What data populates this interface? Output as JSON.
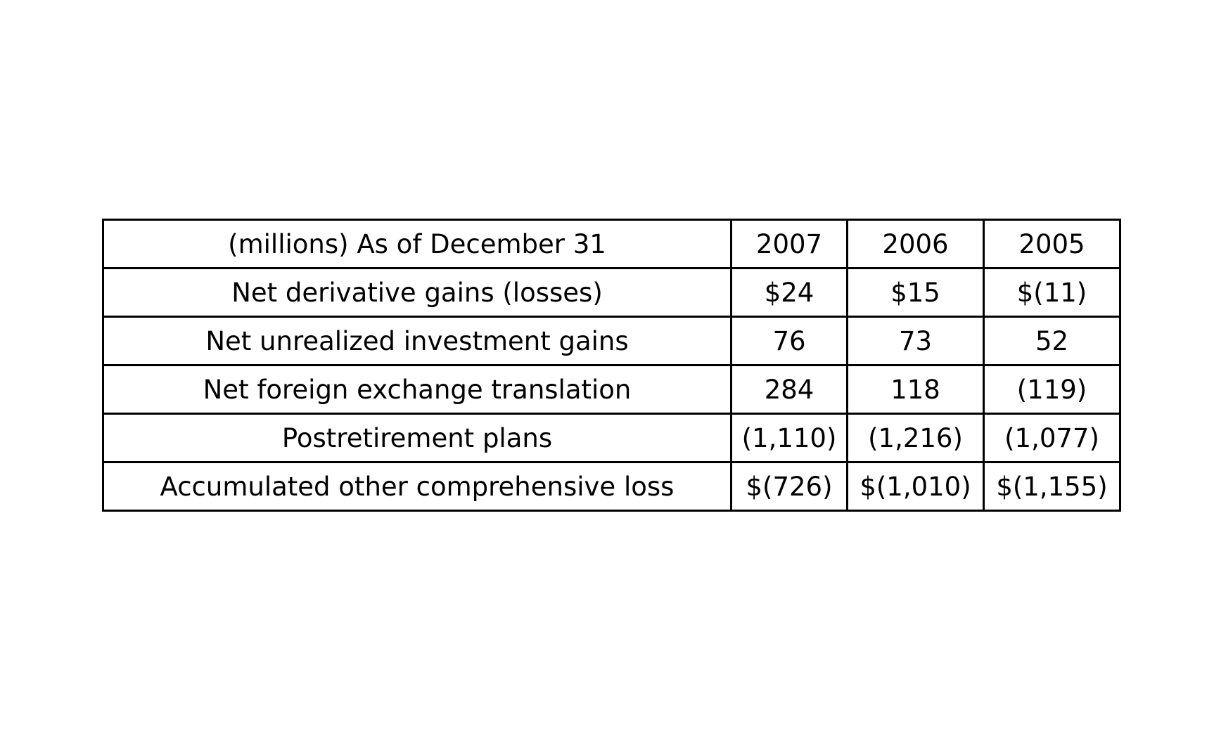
{
  "table": {
    "header": {
      "label": "(millions) As of December 31",
      "years": [
        "2007",
        "2006",
        "2005"
      ]
    },
    "rows": [
      {
        "label": "Net derivative gains (losses)",
        "values": [
          "$24",
          "$15",
          "$(11)"
        ]
      },
      {
        "label": "Net unrealized investment gains",
        "values": [
          "76",
          "73",
          "52"
        ]
      },
      {
        "label": "Net foreign exchange translation",
        "values": [
          "284",
          "118",
          "(119)"
        ]
      },
      {
        "label": "Postretirement plans",
        "values": [
          "(1,110)",
          "(1,216)",
          "(1,077)"
        ]
      },
      {
        "label": "Accumulated other comprehensive loss",
        "values": [
          "$(726)",
          "$(1,010)",
          "$(1,155)"
        ]
      }
    ]
  }
}
